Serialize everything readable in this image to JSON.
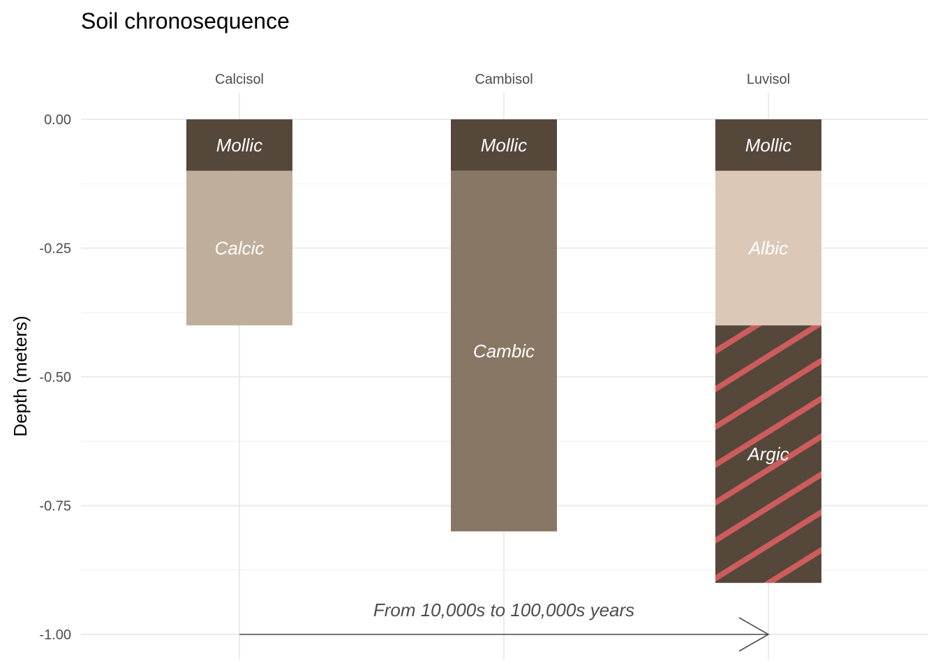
{
  "chart_data": {
    "type": "bar",
    "title": "Soil chronosequence",
    "xlabel": "",
    "ylabel": "Depth (meters)",
    "ylim": [
      -1.0,
      0.0
    ],
    "y_ticks": [
      "0.00",
      "-0.25",
      "-0.50",
      "-0.75",
      "-1.00"
    ],
    "y_tick_values": [
      0,
      -0.25,
      -0.5,
      -0.75,
      -1.0
    ],
    "categories": [
      "Calcisol",
      "Cambisol",
      "Luvisol"
    ],
    "grid": true,
    "profiles": [
      {
        "name": "Calcisol",
        "layers": [
          {
            "label": "Mollic",
            "top": 0.0,
            "bottom": -0.1,
            "color": "#55473a"
          },
          {
            "label": "Calcic",
            "top": -0.1,
            "bottom": -0.4,
            "color": "#bfae99"
          }
        ]
      },
      {
        "name": "Cambisol",
        "layers": [
          {
            "label": "Mollic",
            "top": 0.0,
            "bottom": -0.1,
            "color": "#55473a"
          },
          {
            "label": "Cambic",
            "top": -0.1,
            "bottom": -0.8,
            "color": "#897765"
          }
        ]
      },
      {
        "name": "Luvisol",
        "layers": [
          {
            "label": "Mollic",
            "top": 0.0,
            "bottom": -0.1,
            "color": "#55473a"
          },
          {
            "label": "Albic",
            "top": -0.1,
            "bottom": -0.4,
            "color": "#dcc8b7"
          },
          {
            "label": "Argic",
            "top": -0.4,
            "bottom": -0.9,
            "color": "#55473a",
            "pattern": "stripe",
            "pattern_color": "#cd5c5c"
          }
        ]
      }
    ],
    "annotation": {
      "text": "From 10,000s to 100,000s years",
      "arrow_from": "Calcisol",
      "arrow_to": "Luvisol",
      "y": -1.0
    }
  }
}
